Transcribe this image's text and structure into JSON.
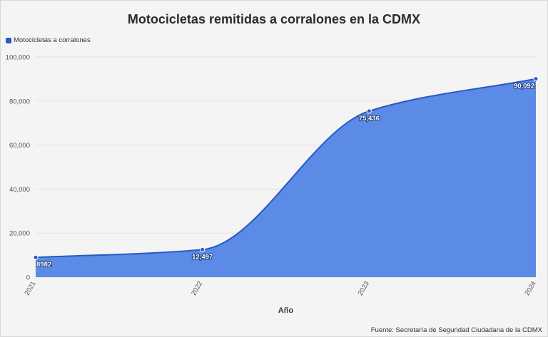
{
  "chart_data": {
    "type": "area",
    "title": "Motocicletas remitidas a corralones en la CDMX",
    "xlabel": "Año",
    "ylabel": "",
    "categories": [
      "2021",
      "2022",
      "2023",
      "2024"
    ],
    "series": [
      {
        "name": "Motocicletas a corralones",
        "values": [
          8982,
          12497,
          75436,
          90092
        ],
        "labels": [
          "8982",
          "12,497",
          "75,436",
          "90,092"
        ]
      }
    ],
    "ylim": [
      0,
      100000
    ],
    "yticks": [
      0,
      20000,
      40000,
      60000,
      80000,
      100000
    ],
    "ytick_labels": [
      "0",
      "20,000",
      "40,000",
      "60,000",
      "80,000",
      "100,000"
    ],
    "grid": true,
    "legend_position": "top-left",
    "colors": {
      "fill": "#5b8be6",
      "line": "#2a58c4",
      "marker": "#2a58c4",
      "grid": "#e2e2e2"
    },
    "source": "Fuente: Secretaría de Seguridad Ciudadana de la CDMX"
  }
}
